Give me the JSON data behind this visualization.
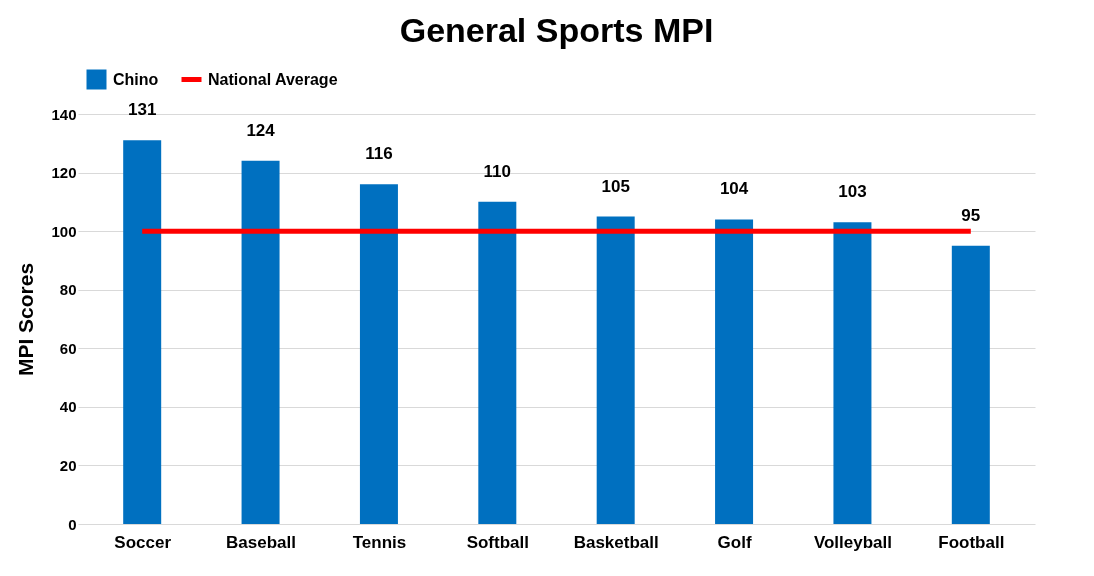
{
  "chart_data": {
    "type": "bar",
    "title": "General Sports MPI",
    "ylabel": "MPI Scores",
    "categories": [
      "Soccer",
      "Baseball",
      "Tennis",
      "Softball",
      "Basketball",
      "Golf",
      "Volleyball",
      "Football"
    ],
    "series": [
      {
        "name": "Chino",
        "color": "#0070c0",
        "values": [
          131,
          124,
          116,
          110,
          105,
          104,
          103,
          95
        ],
        "value_labels": [
          "131",
          "124",
          "116",
          "110",
          "105",
          "104",
          "103",
          "95"
        ]
      },
      {
        "name": "National Average",
        "type": "line",
        "color": "#ff0000",
        "values": [
          100,
          100,
          100,
          100,
          100,
          100,
          100,
          100
        ]
      }
    ],
    "ylim": [
      0,
      140
    ],
    "yticks": [
      0,
      20,
      40,
      60,
      80,
      100,
      120,
      140
    ],
    "grid": "y",
    "legend": "top",
    "marker": "none",
    "line_style": "solid"
  }
}
